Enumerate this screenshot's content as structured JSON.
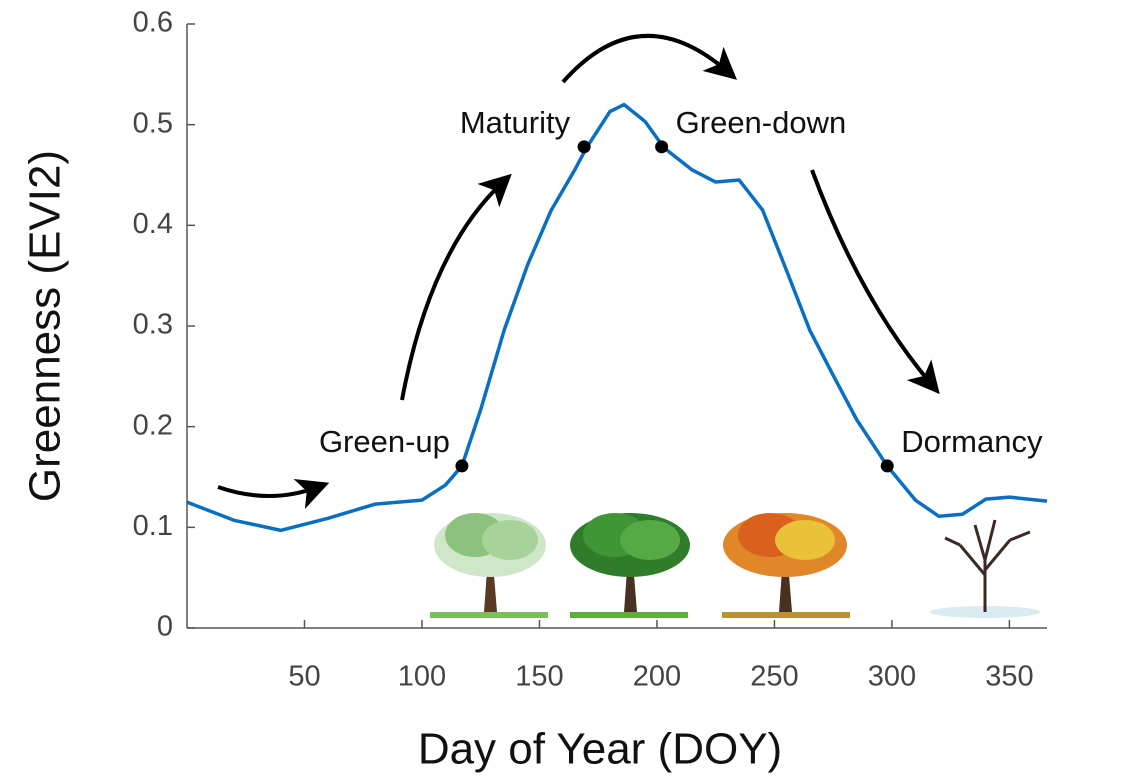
{
  "chart_data": {
    "type": "line",
    "x_label": "Day of Year (DOY)",
    "y_label": "Greenness (EVI2)",
    "xlim": [
      0,
      366
    ],
    "ylim": [
      0,
      0.6
    ],
    "xticks": [
      50,
      100,
      150,
      200,
      250,
      300,
      350
    ],
    "yticks": [
      0,
      0.1,
      0.2,
      0.3,
      0.4,
      0.5,
      0.6
    ],
    "series": [
      {
        "color": "#0a6fc2",
        "x": [
          0,
          20,
          40,
          60,
          80,
          100,
          110,
          117,
          125,
          135,
          145,
          155,
          165,
          170,
          180,
          186,
          195,
          203,
          215,
          225,
          235,
          245,
          255,
          265,
          275,
          285,
          298,
          310,
          320,
          330,
          340,
          350,
          366
        ],
        "values": [
          0.125,
          0.107,
          0.097,
          0.109,
          0.123,
          0.127,
          0.142,
          0.161,
          0.217,
          0.296,
          0.361,
          0.415,
          0.455,
          0.477,
          0.513,
          0.52,
          0.503,
          0.477,
          0.455,
          0.443,
          0.445,
          0.415,
          0.356,
          0.296,
          0.251,
          0.207,
          0.161,
          0.127,
          0.111,
          0.113,
          0.128,
          0.13,
          0.126
        ]
      }
    ],
    "phases": {
      "color": "#000000",
      "labels": [
        "Green-up",
        "Maturity",
        "Green-down",
        "Dormancy"
      ],
      "x": [
        117,
        169,
        202,
        298
      ],
      "values": [
        0.161,
        0.478,
        0.478,
        0.161
      ]
    }
  }
}
